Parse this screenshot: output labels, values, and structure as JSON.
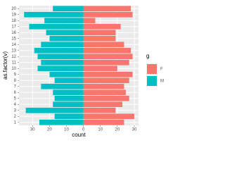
{
  "chart_data": {
    "type": "bar",
    "orientation": "horizontal",
    "stacked": true,
    "x_label": "count",
    "y_label": "as.factor(v)",
    "categories": [
      "1",
      "2",
      "3",
      "4",
      "5",
      "6",
      "7",
      "8",
      "9",
      "10",
      "11",
      "12",
      "13",
      "14",
      "15",
      "16",
      "17",
      "18",
      "19",
      "20"
    ],
    "series": [
      {
        "name": "F",
        "color": "#F8766D",
        "values": [
          24,
          30,
          19,
          23,
          27,
          25,
          24,
          27,
          29,
          20,
          27,
          29,
          28,
          24,
          19,
          19,
          22,
          7,
          29,
          28
        ]
      },
      {
        "name": "M",
        "color": "#00BFC4",
        "values": [
          -26,
          -17,
          -34,
          -18,
          -17,
          -18,
          -25,
          -17,
          -20,
          -27,
          -25,
          -27,
          -29,
          -25,
          -20,
          -22,
          -32,
          -23,
          -35,
          -18
        ]
      }
    ],
    "legend_title": "g",
    "xlim": [
      -38,
      32.5
    ],
    "xticks": [
      {
        "value": -30,
        "label": "30"
      },
      {
        "value": -20,
        "label": "20"
      },
      {
        "value": -10,
        "label": "10"
      },
      0,
      10,
      20,
      30
    ],
    "grid": true
  }
}
